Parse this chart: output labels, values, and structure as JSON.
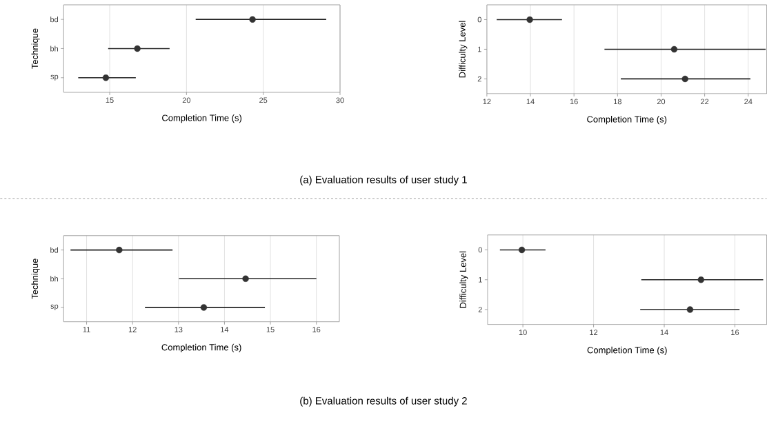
{
  "chart_data": [
    {
      "type": "scatter",
      "orientation": "horizontal",
      "categories": [
        "bd",
        "bh",
        "sp"
      ],
      "values": [
        24.3,
        16.8,
        14.75
      ],
      "errors": [
        [
          20.6,
          29.1
        ],
        [
          14.9,
          18.9
        ],
        [
          12.95,
          16.7
        ]
      ],
      "xlim": [
        12,
        30
      ],
      "xticks": [
        15,
        20,
        25,
        30
      ],
      "xlabel": "Completion Time (s)",
      "ylabel": "Technique",
      "grid": "x",
      "marker": "circle",
      "color": "#333333",
      "annotations": [
        "(a) Evaluation results of user study 1"
      ]
    },
    {
      "type": "scatter",
      "orientation": "horizontal",
      "categories": [
        "0",
        "1",
        "2"
      ],
      "values": [
        13.97,
        20.6,
        21.1
      ],
      "errors": [
        [
          12.45,
          15.45
        ],
        [
          17.4,
          24.8
        ],
        [
          18.15,
          24.1
        ]
      ],
      "xlim": [
        12,
        24.85
      ],
      "xticks": [
        12,
        14,
        16,
        18,
        20,
        22,
        24
      ],
      "xlabel": "Completion Time (s)",
      "ylabel": "Difficulty Level",
      "grid": "x",
      "marker": "circle",
      "color": "#333333"
    },
    {
      "type": "scatter",
      "orientation": "horizontal",
      "categories": [
        "bd",
        "bh",
        "sp"
      ],
      "values": [
        11.71,
        14.46,
        13.55
      ],
      "errors": [
        [
          10.65,
          12.87
        ],
        [
          13.01,
          16.0
        ],
        [
          12.27,
          14.88
        ]
      ],
      "xlim": [
        10.5,
        16.5
      ],
      "xticks": [
        11,
        12,
        13,
        14,
        15,
        16
      ],
      "xlabel": "Completion Time (s)",
      "ylabel": "Technique",
      "grid": "x",
      "marker": "circle",
      "color": "#333333",
      "annotations": [
        "(b) Evaluation results of user study 2"
      ]
    },
    {
      "type": "scatter",
      "orientation": "horizontal",
      "categories": [
        "0",
        "1",
        "2"
      ],
      "values": [
        9.97,
        15.04,
        14.73
      ],
      "errors": [
        [
          9.35,
          10.64
        ],
        [
          13.35,
          16.8
        ],
        [
          13.32,
          16.13
        ]
      ],
      "xlim": [
        9,
        16.9
      ],
      "xticks": [
        10,
        12,
        14,
        16
      ],
      "xlabel": "Completion Time (s)",
      "ylabel": "Difficulty Level",
      "grid": "x",
      "marker": "circle",
      "color": "#333333"
    }
  ]
}
